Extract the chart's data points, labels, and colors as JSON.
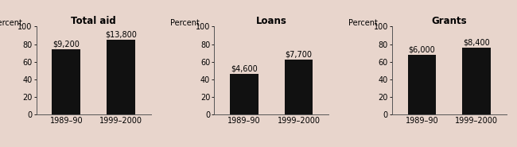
{
  "panels": [
    {
      "title": "Total aid",
      "bars": [
        74,
        85
      ],
      "labels": [
        "1989–90",
        "1999–2000"
      ],
      "annotations": [
        "$9,200",
        "$13,800"
      ]
    },
    {
      "title": "Loans",
      "bars": [
        46,
        62
      ],
      "labels": [
        "1989–90",
        "1999–2000"
      ],
      "annotations": [
        "$4,600",
        "$7,700"
      ]
    },
    {
      "title": "Grants",
      "bars": [
        68,
        76
      ],
      "labels": [
        "1989–90",
        "1999–2000"
      ],
      "annotations": [
        "$6,000",
        "$8,400"
      ]
    }
  ],
  "percent_label": "Percent",
  "ylim": [
    0,
    100
  ],
  "yticks": [
    0,
    20,
    40,
    60,
    80,
    100
  ],
  "bar_color": "#111111",
  "background_color": "#e8d5cc",
  "bar_width": 0.52,
  "title_fontsize": 8.5,
  "label_fontsize": 7.0,
  "tick_fontsize": 7.0,
  "annot_fontsize": 7.0
}
